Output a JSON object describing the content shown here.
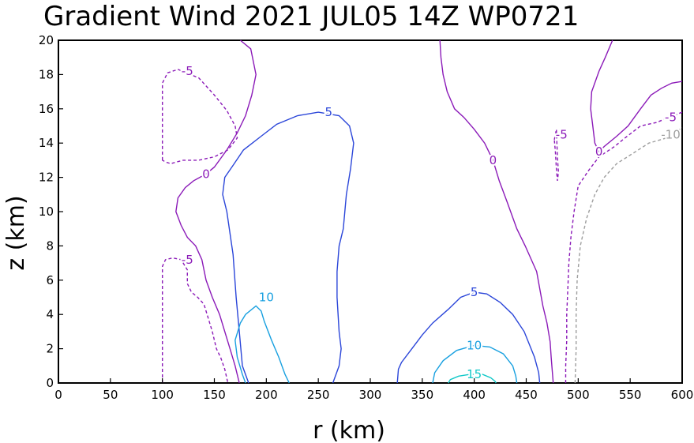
{
  "chart_data": {
    "type": "contour",
    "title": "Gradient Wind 2021 JUL05 14Z   WP0721",
    "xlabel": "r (km)",
    "ylabel": "z (km)",
    "xlim": [
      0,
      600
    ],
    "ylim": [
      0,
      20
    ],
    "xticks": [
      "0",
      "50",
      "100",
      "150",
      "200",
      "250",
      "300",
      "350",
      "400",
      "450",
      "500",
      "550",
      "600"
    ],
    "yticks": [
      "0",
      "2",
      "4",
      "6",
      "8",
      "10",
      "12",
      "14",
      "16",
      "18",
      "20"
    ],
    "colors": {
      "neg10": "#9e9e9e",
      "neg5": "#8b1ab8",
      "zero": "#8b1ab8",
      "pos5": "#2b46d9",
      "pos10": "#18a0e0",
      "pos15": "#10c8c8"
    },
    "contours": [
      {
        "level": -5,
        "label": "-5",
        "style": "dashed",
        "color": "neg5",
        "closed": true,
        "label_at": [
          124,
          18.2
        ],
        "points": [
          [
            100,
            13
          ],
          [
            100,
            17.5
          ],
          [
            105,
            18.1
          ],
          [
            115,
            18.3
          ],
          [
            135,
            17.8
          ],
          [
            150,
            16.8
          ],
          [
            162,
            15.9
          ],
          [
            170,
            15
          ],
          [
            172,
            14.3
          ],
          [
            163,
            13.6
          ],
          [
            150,
            13.2
          ],
          [
            135,
            13
          ],
          [
            120,
            13
          ],
          [
            108,
            12.8
          ],
          [
            103,
            12.9
          ],
          [
            100,
            13
          ]
        ]
      },
      {
        "level": -5,
        "label": "-5",
        "style": "dashed",
        "color": "neg5",
        "label_at": [
          124,
          7.2
        ],
        "points": [
          [
            100,
            0
          ],
          [
            100,
            5
          ],
          [
            100,
            6
          ],
          [
            100,
            6.8
          ],
          [
            103,
            7.2
          ],
          [
            110,
            7.3
          ],
          [
            118,
            7.2
          ],
          [
            124,
            6.6
          ],
          [
            124,
            5.8
          ],
          [
            128,
            5.3
          ],
          [
            134,
            5
          ],
          [
            140,
            4.6
          ],
          [
            143,
            4
          ],
          [
            148,
            3
          ],
          [
            152,
            2
          ],
          [
            156,
            1.5
          ],
          [
            160,
            0.8
          ],
          [
            163,
            0
          ]
        ]
      },
      {
        "level": -5,
        "label": "-5",
        "style": "dashed",
        "color": "neg5",
        "label_at": [
          484,
          14.5
        ],
        "points": [
          [
            477,
            14.2
          ],
          [
            479,
            14.8
          ],
          [
            480,
            13.2
          ],
          [
            481,
            12.3
          ],
          [
            480,
            11.8
          ],
          [
            479,
            12.5
          ],
          [
            478,
            13.5
          ],
          [
            477,
            14.2
          ]
        ]
      },
      {
        "level": -5,
        "label": "-5",
        "style": "dashed",
        "color": "neg5",
        "label_at": [
          589,
          15.5
        ],
        "points": [
          [
            488,
            0
          ],
          [
            488,
            1
          ],
          [
            489,
            2.5
          ],
          [
            489,
            4
          ],
          [
            490,
            5.5
          ],
          [
            491,
            7
          ],
          [
            493,
            8.5
          ],
          [
            496,
            10
          ],
          [
            500,
            11.5
          ],
          [
            510,
            12.4
          ],
          [
            520,
            13.2
          ],
          [
            535,
            13.8
          ],
          [
            545,
            14.3
          ],
          [
            560,
            15
          ],
          [
            575,
            15.2
          ],
          [
            600,
            15.8
          ]
        ]
      },
      {
        "level": -10,
        "label": "-10",
        "style": "dashed",
        "color": "neg10",
        "label_at": [
          589,
          14.5
        ],
        "points": [
          [
            497,
            0
          ],
          [
            498,
            2
          ],
          [
            498,
            4
          ],
          [
            499,
            6
          ],
          [
            502,
            8
          ],
          [
            508,
            9.6
          ],
          [
            516,
            11
          ],
          [
            525,
            12
          ],
          [
            537,
            12.8
          ],
          [
            550,
            13.3
          ],
          [
            568,
            14
          ],
          [
            585,
            14.3
          ],
          [
            600,
            14.9
          ]
        ]
      },
      {
        "level": 0,
        "label": "0",
        "style": "solid",
        "color": "zero",
        "label_at": [
          142,
          12.2
        ],
        "points": [
          [
            174,
            0
          ],
          [
            170,
            1
          ],
          [
            165,
            2
          ],
          [
            160,
            3
          ],
          [
            155,
            4
          ],
          [
            148,
            5
          ],
          [
            142,
            6
          ],
          [
            138,
            7.2
          ],
          [
            132,
            8
          ],
          [
            124,
            8.5
          ],
          [
            118,
            9.2
          ],
          [
            113,
            10
          ],
          [
            115,
            10.8
          ],
          [
            122,
            11.4
          ],
          [
            130,
            11.8
          ],
          [
            142,
            12.2
          ],
          [
            150,
            12.6
          ],
          [
            162,
            13.6
          ],
          [
            172,
            14.6
          ],
          [
            180,
            15.6
          ],
          [
            186,
            16.8
          ],
          [
            190,
            18
          ],
          [
            185,
            19.5
          ],
          [
            175,
            20
          ]
        ]
      },
      {
        "level": 0,
        "label": "0",
        "style": "solid",
        "color": "zero",
        "label_at": [
          418,
          13.0
        ],
        "points": [
          [
            367,
            20
          ],
          [
            368,
            19
          ],
          [
            370,
            18
          ],
          [
            374,
            17
          ],
          [
            381,
            16
          ],
          [
            390,
            15.5
          ],
          [
            400,
            14.8
          ],
          [
            410,
            14
          ],
          [
            418,
            13
          ],
          [
            424,
            11.8
          ],
          [
            432,
            10.5
          ],
          [
            441,
            9
          ],
          [
            449,
            8
          ],
          [
            460,
            6.5
          ],
          [
            466,
            4.5
          ],
          [
            470,
            3.5
          ],
          [
            473,
            2.4
          ],
          [
            474,
            1.5
          ],
          [
            476,
            0
          ]
        ]
      },
      {
        "level": 0,
        "label": "0",
        "style": "solid",
        "color": "zero",
        "label_at": [
          520,
          13.5
        ],
        "points": [
          [
            600,
            17.6
          ],
          [
            590,
            17.5
          ],
          [
            580,
            17.2
          ],
          [
            570,
            16.8
          ],
          [
            560,
            16
          ],
          [
            548,
            15
          ],
          [
            537,
            14.4
          ],
          [
            525,
            13.8
          ],
          [
            520,
            13.5
          ],
          [
            516,
            14
          ],
          [
            514,
            15
          ],
          [
            512,
            16
          ],
          [
            513,
            17
          ],
          [
            520,
            18.2
          ],
          [
            526,
            19
          ],
          [
            533,
            20
          ]
        ]
      },
      {
        "level": 5,
        "label": "5",
        "style": "solid",
        "color": "pos5",
        "label_at": [
          260,
          15.8
        ],
        "points": [
          [
            183,
            0
          ],
          [
            177,
            1
          ],
          [
            174,
            3
          ],
          [
            171,
            5
          ],
          [
            168,
            7.5
          ],
          [
            162,
            10
          ],
          [
            158,
            11
          ],
          [
            160,
            12
          ],
          [
            168,
            12.7
          ],
          [
            178,
            13.6
          ],
          [
            195,
            14.4
          ],
          [
            210,
            15.1
          ],
          [
            230,
            15.6
          ],
          [
            250,
            15.8
          ],
          [
            270,
            15.6
          ],
          [
            280,
            15
          ],
          [
            284,
            14
          ],
          [
            281,
            12.5
          ],
          [
            277,
            11
          ],
          [
            274,
            9
          ],
          [
            270,
            8
          ],
          [
            268,
            6.5
          ],
          [
            268,
            5
          ],
          [
            270,
            3
          ],
          [
            272,
            2
          ],
          [
            270,
            1
          ],
          [
            264,
            0
          ]
        ]
      },
      {
        "level": 5,
        "label": "5",
        "style": "solid",
        "color": "pos5",
        "label_at": [
          400,
          5.3
        ],
        "points": [
          [
            326,
            0
          ],
          [
            327,
            0.8
          ],
          [
            330,
            1.2
          ],
          [
            340,
            2
          ],
          [
            350,
            2.8
          ],
          [
            360,
            3.5
          ],
          [
            375,
            4.3
          ],
          [
            387,
            5
          ],
          [
            400,
            5.3
          ],
          [
            412,
            5.2
          ],
          [
            425,
            4.7
          ],
          [
            437,
            4
          ],
          [
            448,
            3
          ],
          [
            458,
            1.5
          ],
          [
            462,
            0.6
          ],
          [
            463,
            0
          ]
        ]
      },
      {
        "level": 10,
        "label": "10",
        "style": "solid",
        "color": "pos10",
        "label_at": [
          200,
          5.0
        ],
        "points": [
          [
            222,
            0
          ],
          [
            218,
            0.5
          ],
          [
            212,
            1.5
          ],
          [
            205,
            2.5
          ],
          [
            198,
            3.6
          ],
          [
            195,
            4.2
          ],
          [
            190,
            4.5
          ],
          [
            180,
            4
          ],
          [
            175,
            3.5
          ],
          [
            170,
            2.5
          ],
          [
            172,
            1.5
          ],
          [
            177,
            0.5
          ],
          [
            180,
            0
          ]
        ]
      },
      {
        "level": 10,
        "label": "10",
        "style": "solid",
        "color": "pos10",
        "label_at": [
          400,
          2.2
        ],
        "points": [
          [
            360,
            0
          ],
          [
            362,
            0.6
          ],
          [
            370,
            1.3
          ],
          [
            383,
            1.9
          ],
          [
            400,
            2.2
          ],
          [
            415,
            2.1
          ],
          [
            428,
            1.7
          ],
          [
            437,
            1
          ],
          [
            440,
            0.4
          ],
          [
            441,
            0
          ]
        ]
      },
      {
        "level": 15,
        "label": "15",
        "style": "solid",
        "color": "pos15",
        "label_at": [
          400,
          0.5
        ],
        "points": [
          [
            375,
            0
          ],
          [
            377,
            0.2
          ],
          [
            385,
            0.4
          ],
          [
            396,
            0.5
          ],
          [
            408,
            0.5
          ],
          [
            416,
            0.3
          ],
          [
            420,
            0.1
          ],
          [
            421,
            0
          ]
        ]
      }
    ]
  }
}
